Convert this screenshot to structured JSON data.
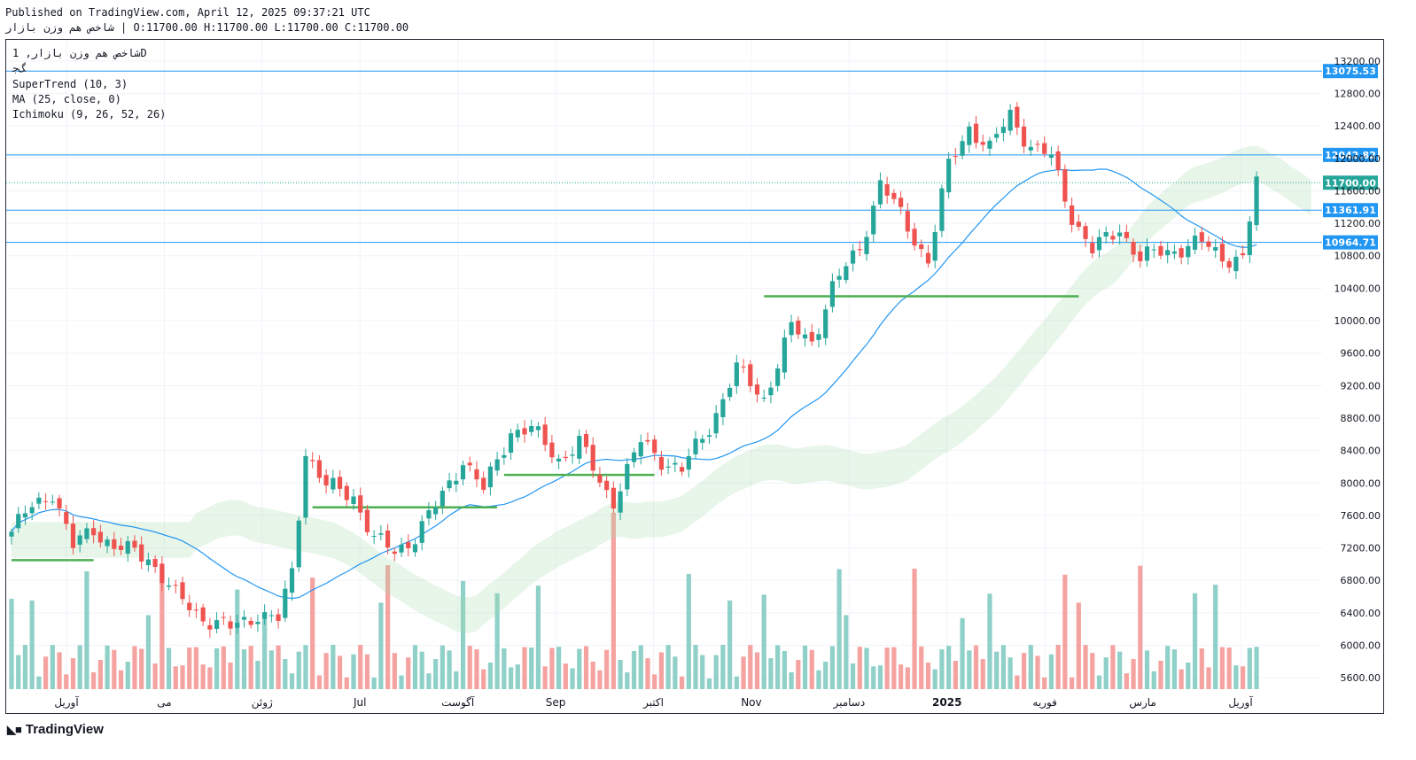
{
  "header": {
    "published": "Published on TradingView.com, April 12, 2025 09:37:21 UTC",
    "ohlc": "شاخص هم وزن بازار | O:11700.00 H:11700.00 L:11700.00 C:11700.00"
  },
  "legend": {
    "symbol": "شاخص هم وزن بازار, 1D",
    "symbol_sub": "ﮓﺟ",
    "indicators": [
      "SuperTrend (10, 3)",
      "MA (25, close, 0)",
      "Ichimoku (9, 26, 52, 26)"
    ]
  },
  "brand": {
    "name": "TradingView",
    "icon": "tradingview-logo-icon"
  },
  "colors": {
    "up": "#26a69a",
    "down": "#ef5350",
    "st_up": "#4caf50",
    "st_down": "#a8504a",
    "ma": "#2196f3",
    "hline": "#2196f3",
    "cloud_bull": "#a5d6a7",
    "cloud_bear": "#f8bbd0",
    "vol_up": "#8fd0c8",
    "vol_down": "#f5a3a1"
  },
  "chart_data": {
    "type": "candlestick",
    "timeframe": "1D",
    "ylim": [
      5460,
      13460
    ],
    "y_ticks": [
      5600,
      6000,
      6400,
      6800,
      7200,
      7600,
      8000,
      8400,
      8800,
      9200,
      9600,
      10000,
      10400,
      10800,
      11200,
      11600,
      12000,
      12400,
      12800,
      13200
    ],
    "x_labels": [
      "آوریل",
      "می",
      "ژوئن",
      "Jul",
      "آگوست",
      "Sep",
      "اکتبر",
      "Nov",
      "دسامبر",
      "2025",
      "فوریه",
      "مارس",
      "آوریل"
    ],
    "x_label_bold": [
      false,
      false,
      false,
      false,
      false,
      false,
      false,
      false,
      false,
      true,
      false,
      false,
      false
    ],
    "horizontal_levels": [
      {
        "value": 13075.53,
        "label": "13075.53"
      },
      {
        "value": 12042.82,
        "label": "12042.82"
      },
      {
        "value": 11361.91,
        "label": "11361.91"
      },
      {
        "value": 10964.71,
        "label": "10964.71"
      }
    ],
    "last_price": {
      "value": 11700.0,
      "label": "11700.00"
    },
    "anchors": [
      [
        0,
        7400
      ],
      [
        3,
        7700
      ],
      [
        6,
        7900
      ],
      [
        9,
        7200
      ],
      [
        12,
        7450
      ],
      [
        15,
        7200
      ],
      [
        20,
        7100
      ],
      [
        24,
        6600
      ],
      [
        28,
        6350
      ],
      [
        32,
        6200
      ],
      [
        36,
        6400
      ],
      [
        39,
        6300
      ],
      [
        41,
        6900
      ],
      [
        43,
        8400
      ],
      [
        46,
        7950
      ],
      [
        50,
        7850
      ],
      [
        53,
        7300
      ],
      [
        56,
        7150
      ],
      [
        59,
        7350
      ],
      [
        62,
        7700
      ],
      [
        66,
        8300
      ],
      [
        69,
        7900
      ],
      [
        73,
        8650
      ],
      [
        76,
        8650
      ],
      [
        80,
        8300
      ],
      [
        83,
        8500
      ],
      [
        86,
        8000
      ],
      [
        88,
        7800
      ],
      [
        92,
        8500
      ],
      [
        95,
        8300
      ],
      [
        98,
        8150
      ],
      [
        102,
        8700
      ],
      [
        106,
        9400
      ],
      [
        110,
        9050
      ],
      [
        114,
        9900
      ],
      [
        117,
        9750
      ],
      [
        120,
        10400
      ],
      [
        124,
        10900
      ],
      [
        127,
        11700
      ],
      [
        131,
        11150
      ],
      [
        134,
        10750
      ],
      [
        137,
        11900
      ],
      [
        140,
        12400
      ],
      [
        143,
        12100
      ],
      [
        146,
        12550
      ],
      [
        149,
        12150
      ],
      [
        152,
        12000
      ],
      [
        155,
        11300
      ],
      [
        158,
        10850
      ],
      [
        162,
        11150
      ],
      [
        165,
        10750
      ],
      [
        168,
        10850
      ],
      [
        171,
        10900
      ],
      [
        174,
        10950
      ],
      [
        177,
        10800
      ],
      [
        180,
        10750
      ],
      [
        182,
        11700
      ]
    ],
    "supertrend_up_segments": [
      {
        "from": 0,
        "to": 12,
        "level": 7050
      },
      {
        "from": 44,
        "to": 71,
        "level": 7700
      },
      {
        "from": 72,
        "to": 94,
        "level": 8100
      },
      {
        "from": 110,
        "to": 156,
        "level": 10300
      }
    ],
    "volume_ylim": [
      0,
      1
    ],
    "volume_note": "relative bar heights only"
  }
}
